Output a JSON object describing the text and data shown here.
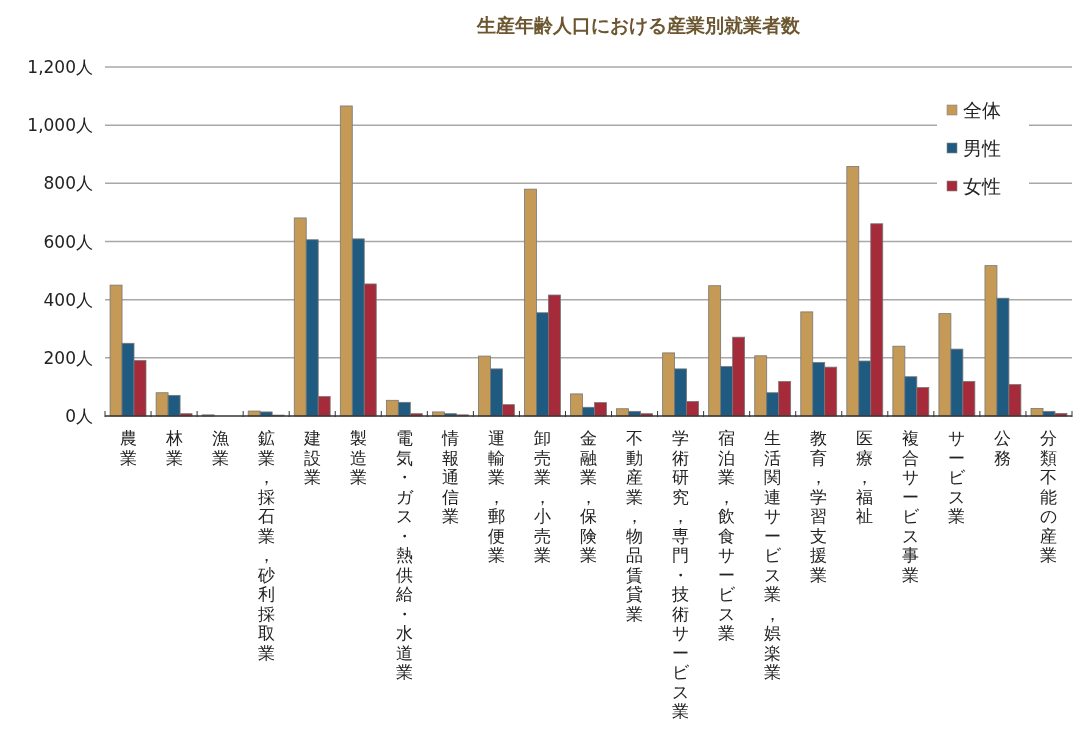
{
  "chart_data": {
    "type": "bar",
    "title": "生産年齢人口における産業別就業者数",
    "categories": [
      "農業",
      "林業",
      "漁業",
      "鉱業，採石業，砂利採取業",
      "建設業",
      "製造業",
      "電気・ガス・熱供給・水道業",
      "情報通信業",
      "運輸業，郵便業",
      "卸売業，小売業",
      "金融業，保険業",
      "不動産業，物品賃貸業",
      "学術研究，専門・技術サービス業",
      "宿泊業，飲食サービス業",
      "生活関連サービス業，娯楽業",
      "教育，学習支援業",
      "医療，福祉",
      "複合サービス事業",
      "サービス業",
      "公務",
      "分類不能の産業"
    ],
    "series": [
      {
        "name": "全体",
        "color": "#c49a56",
        "values": [
          450,
          80,
          4,
          17,
          681,
          1066,
          54,
          14,
          206,
          780,
          76,
          25,
          217,
          448,
          207,
          358,
          858,
          240,
          352,
          517,
          26
        ]
      },
      {
        "name": "男性",
        "color": "#1f5a80",
        "values": [
          250,
          71,
          null,
          14,
          606,
          609,
          47,
          8,
          162,
          355,
          30,
          16,
          162,
          170,
          80,
          184,
          189,
          135,
          230,
          405,
          16
        ]
      },
      {
        "name": "女性",
        "color": "#a52a3a",
        "values": [
          191,
          8,
          null,
          3,
          67,
          454,
          8,
          4,
          39,
          416,
          46,
          8,
          50,
          271,
          119,
          168,
          661,
          98,
          119,
          108,
          9
        ]
      }
    ],
    "ylim": [
      0,
      1200
    ],
    "yticks": [
      {
        "value": 0,
        "label": "0人"
      },
      {
        "value": 200,
        "label": "200人"
      },
      {
        "value": 400,
        "label": "400人"
      },
      {
        "value": 600,
        "label": "600人"
      },
      {
        "value": 800,
        "label": "800人"
      },
      {
        "value": 1000,
        "label": "1,000人"
      },
      {
        "value": 1200,
        "label": "1,200人"
      }
    ],
    "grid": "y",
    "legend": "top right"
  }
}
